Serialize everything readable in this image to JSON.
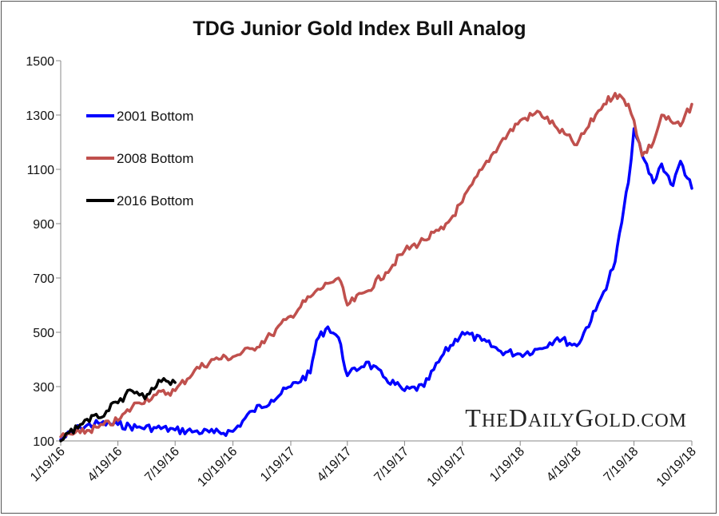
{
  "chart_data": {
    "type": "line",
    "title": "TDG Junior Gold Index Bull Analog",
    "xlabel": "",
    "ylabel": "",
    "ylim": [
      100,
      1500
    ],
    "yticks": [
      "100",
      "300",
      "500",
      "700",
      "900",
      "1100",
      "1300",
      "1500"
    ],
    "xticks": [
      "1/19/16",
      "4/19/16",
      "7/19/16",
      "10/19/16",
      "1/19/17",
      "4/19/17",
      "7/19/17",
      "10/19/17",
      "1/19/18",
      "4/19/18",
      "7/19/18",
      "10/19/18"
    ],
    "grid": false,
    "legend_position": "top-left",
    "watermark": "TheDailyGold.com",
    "series": [
      {
        "name": "2001 Bottom",
        "color": "#0000ff",
        "x": [
          "1/19/16",
          "2/19/16",
          "3/19/16",
          "4/19/16",
          "5/19/16",
          "6/19/16",
          "7/19/16",
          "8/19/16",
          "9/19/16",
          "10/19/16",
          "11/19/16",
          "12/19/16",
          "1/19/17",
          "2/19/17",
          "3/1/17",
          "3/19/17",
          "4/5/17",
          "4/19/17",
          "5/19/17",
          "6/19/17",
          "7/19/17",
          "8/19/17",
          "9/19/17",
          "10/19/17",
          "11/19/17",
          "12/19/17",
          "1/19/18",
          "2/19/18",
          "3/19/18",
          "4/19/18",
          "5/19/18",
          "6/1/18",
          "6/19/18",
          "7/10/18",
          "7/19/18",
          "8/1/18",
          "8/19/18",
          "9/1/18",
          "9/19/18",
          "10/1/18",
          "10/19/18"
        ],
        "values": [
          105,
          150,
          165,
          160,
          150,
          148,
          140,
          135,
          130,
          135,
          210,
          250,
          300,
          350,
          470,
          520,
          480,
          340,
          390,
          330,
          285,
          300,
          420,
          500,
          470,
          430,
          420,
          440,
          480,
          450,
          580,
          650,
          760,
          1050,
          1250,
          1150,
          1050,
          1120,
          1040,
          1130,
          1030
        ]
      },
      {
        "name": "2008 Bottom",
        "color": "#c0504d",
        "x": [
          "1/19/16",
          "2/19/16",
          "3/19/16",
          "4/19/16",
          "5/19/16",
          "6/19/16",
          "7/19/16",
          "8/19/16",
          "9/19/16",
          "10/19/16",
          "11/19/16",
          "12/19/16",
          "1/19/17",
          "2/19/17",
          "3/19/17",
          "4/5/17",
          "4/19/17",
          "5/19/17",
          "6/19/17",
          "7/19/17",
          "8/19/17",
          "9/19/17",
          "10/19/17",
          "11/19/17",
          "12/19/17",
          "1/19/18",
          "2/19/18",
          "3/19/18",
          "4/19/18",
          "5/19/18",
          "6/1/18",
          "6/19/18",
          "7/10/18",
          "7/19/18",
          "8/1/18",
          "8/19/18",
          "9/1/18",
          "9/19/18",
          "10/1/18",
          "10/19/18"
        ],
        "values": [
          115,
          130,
          150,
          175,
          240,
          270,
          285,
          360,
          400,
          410,
          440,
          490,
          560,
          630,
          680,
          700,
          600,
          650,
          720,
          800,
          840,
          880,
          980,
          1100,
          1200,
          1280,
          1310,
          1250,
          1190,
          1300,
          1340,
          1380,
          1340,
          1280,
          1150,
          1200,
          1300,
          1270,
          1260,
          1340
        ]
      },
      {
        "name": "2016 Bottom",
        "color": "#000000",
        "x": [
          "1/19/16",
          "2/1/16",
          "2/19/16",
          "3/1/16",
          "3/19/16",
          "4/1/16",
          "4/19/16",
          "5/1/16",
          "5/19/16",
          "6/1/16",
          "6/19/16",
          "7/1/16",
          "7/19/16"
        ],
        "values": [
          100,
          130,
          160,
          180,
          185,
          210,
          240,
          270,
          280,
          255,
          300,
          330,
          315
        ]
      }
    ]
  }
}
